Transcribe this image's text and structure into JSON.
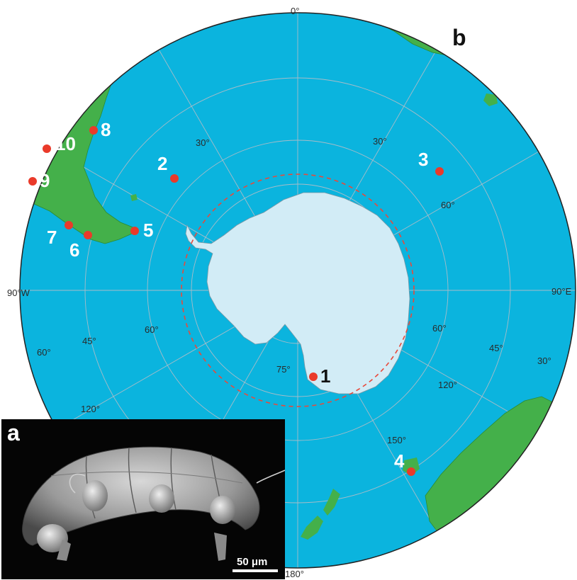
{
  "panels": {
    "inset_label": "a",
    "map_label": "b"
  },
  "map": {
    "longitude_labels": [
      "0°",
      "30°",
      "60°",
      "90°E",
      "120°",
      "150°",
      "180°",
      "120°",
      "90°W",
      "30°"
    ],
    "latitude_labels": [
      "30°",
      "60°",
      "45°",
      "60°",
      "75°",
      "30°",
      "45°",
      "60°"
    ],
    "sites": [
      {
        "id": "1",
        "text_color": "dark"
      },
      {
        "id": "2",
        "text_color": "light"
      },
      {
        "id": "3",
        "text_color": "light"
      },
      {
        "id": "4",
        "text_color": "light"
      },
      {
        "id": "5",
        "text_color": "light"
      },
      {
        "id": "6",
        "text_color": "light"
      },
      {
        "id": "7",
        "text_color": "light"
      },
      {
        "id": "8",
        "text_color": "light"
      },
      {
        "id": "9",
        "text_color": "light"
      },
      {
        "id": "10",
        "text_color": "light"
      }
    ],
    "colors": {
      "ocean": "#0bb4de",
      "land": "#44b04a",
      "antarctica": "#d2ecf6",
      "site_marker": "#ea3a2a",
      "circle_line": "#e8493b"
    }
  },
  "inset": {
    "scale_bar": "50 μm"
  }
}
